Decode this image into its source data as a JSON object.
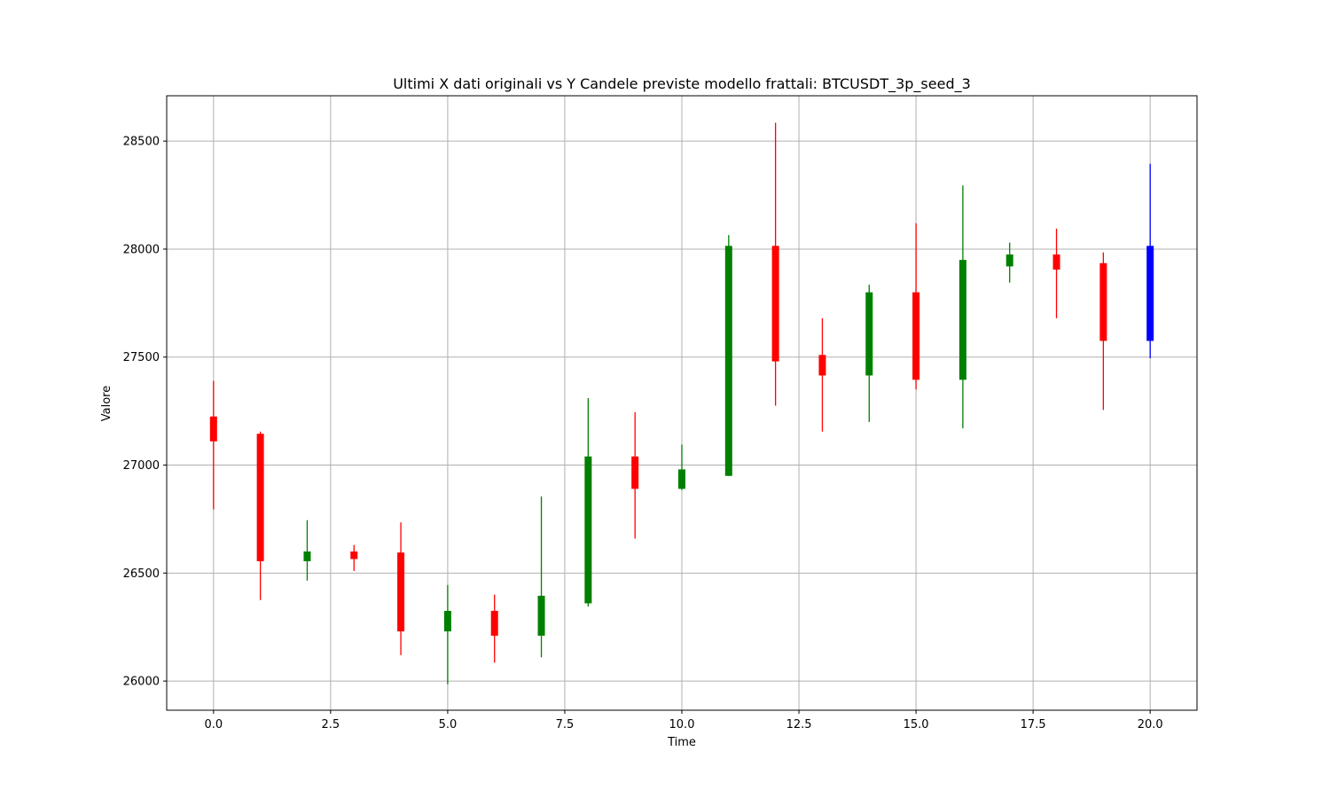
{
  "chart_data": {
    "type": "candlestick",
    "title": "Ultimi X dati originali vs Y Candele previste modello frattali: BTCUSDT_3p_seed_3",
    "xlabel": "Time",
    "ylabel": "Valore",
    "xlim": [
      -1,
      21
    ],
    "ylim": [
      25865,
      28710
    ],
    "x_ticks": [
      0,
      2.5,
      5,
      7.5,
      10,
      12.5,
      15,
      17.5,
      20
    ],
    "x_tick_labels": [
      "0.0",
      "2.5",
      "5.0",
      "7.5",
      "10.0",
      "12.5",
      "15.0",
      "17.5",
      "20.0"
    ],
    "y_ticks": [
      26000,
      26500,
      27000,
      27500,
      28000,
      28500
    ],
    "y_tick_labels": [
      "26000",
      "26500",
      "27000",
      "27500",
      "28000",
      "28500"
    ],
    "grid": true,
    "colors": {
      "up": "#008000",
      "down": "#ff0000",
      "predicted": "#0000ff"
    },
    "candles": [
      {
        "x": 0,
        "open": 27225,
        "high": 27390,
        "low": 26795,
        "close": 27110,
        "color": "down"
      },
      {
        "x": 1,
        "open": 27145,
        "high": 27155,
        "low": 26375,
        "close": 26555,
        "color": "down"
      },
      {
        "x": 2,
        "open": 26555,
        "high": 26745,
        "low": 26465,
        "close": 26600,
        "color": "up"
      },
      {
        "x": 3,
        "open": 26600,
        "high": 26630,
        "low": 26510,
        "close": 26565,
        "color": "down"
      },
      {
        "x": 4,
        "open": 26595,
        "high": 26735,
        "low": 26120,
        "close": 26230,
        "color": "down"
      },
      {
        "x": 5,
        "open": 26230,
        "high": 26445,
        "low": 25985,
        "close": 26325,
        "color": "up"
      },
      {
        "x": 6,
        "open": 26325,
        "high": 26400,
        "low": 26085,
        "close": 26210,
        "color": "down"
      },
      {
        "x": 7,
        "open": 26210,
        "high": 26855,
        "low": 26110,
        "close": 26395,
        "color": "up"
      },
      {
        "x": 8,
        "open": 26360,
        "high": 27310,
        "low": 26345,
        "close": 27040,
        "color": "up"
      },
      {
        "x": 9,
        "open": 27040,
        "high": 27245,
        "low": 26660,
        "close": 26890,
        "color": "down"
      },
      {
        "x": 10,
        "open": 26890,
        "high": 27095,
        "low": 26885,
        "close": 26980,
        "color": "up"
      },
      {
        "x": 11,
        "open": 26950,
        "high": 28065,
        "low": 26950,
        "close": 28015,
        "color": "up"
      },
      {
        "x": 12,
        "open": 28015,
        "high": 28585,
        "low": 27275,
        "close": 27480,
        "color": "down"
      },
      {
        "x": 13,
        "open": 27510,
        "high": 27680,
        "low": 27155,
        "close": 27415,
        "color": "down"
      },
      {
        "x": 14,
        "open": 27415,
        "high": 27835,
        "low": 27200,
        "close": 27800,
        "color": "up"
      },
      {
        "x": 15,
        "open": 27800,
        "high": 28120,
        "low": 27350,
        "close": 27395,
        "color": "down"
      },
      {
        "x": 16,
        "open": 27395,
        "high": 28295,
        "low": 27170,
        "close": 27950,
        "color": "up"
      },
      {
        "x": 17,
        "open": 27920,
        "high": 28030,
        "low": 27845,
        "close": 27975,
        "color": "up"
      },
      {
        "x": 18,
        "open": 27975,
        "high": 28095,
        "low": 27680,
        "close": 27905,
        "color": "down"
      },
      {
        "x": 19,
        "open": 27935,
        "high": 27985,
        "low": 27255,
        "close": 27575,
        "color": "down"
      },
      {
        "x": 20,
        "open": 27575,
        "high": 28395,
        "low": 27495,
        "close": 28015,
        "color": "predicted"
      }
    ]
  }
}
